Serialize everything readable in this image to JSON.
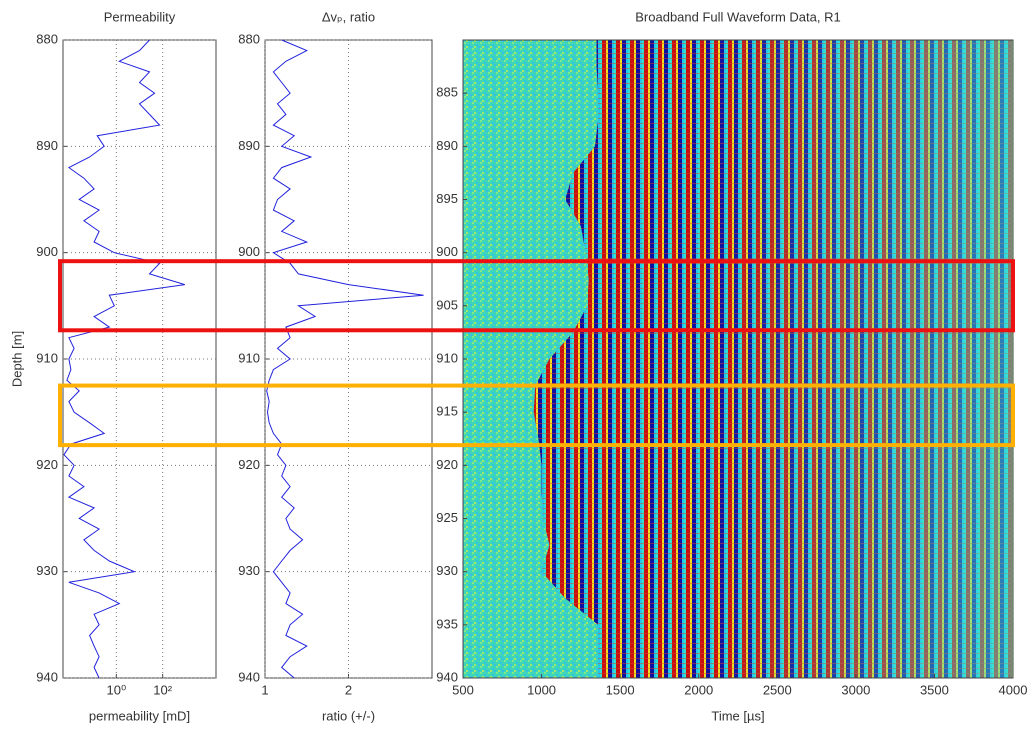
{
  "chart_data": [
    {
      "type": "line",
      "title": "Permeability",
      "xlabel": "permeability [mD]",
      "ylabel": "Depth [m]",
      "log_x": true,
      "grid": true,
      "color": "#2222dd",
      "xlim": [
        0.005,
        20000
      ],
      "xticks": [
        {
          "value": 1,
          "label": "10⁰"
        },
        {
          "value": 100,
          "label": "10²"
        }
      ],
      "ylim": [
        880,
        940
      ],
      "yticks": [
        880,
        890,
        900,
        910,
        920,
        930,
        940
      ],
      "depths": [
        880,
        881,
        882,
        883,
        884,
        885,
        886,
        887,
        888,
        889,
        890,
        891,
        892,
        893,
        894,
        895,
        896,
        897,
        898,
        899,
        900,
        901,
        902,
        903,
        904,
        905,
        906,
        907,
        908,
        909,
        910,
        911,
        912,
        913,
        914,
        915,
        916,
        917,
        918,
        919,
        920,
        921,
        922,
        923,
        924,
        925,
        926,
        927,
        928,
        929,
        930,
        931,
        932,
        933,
        934,
        935,
        936,
        937,
        938,
        939,
        940
      ],
      "values": [
        27,
        10,
        1.35,
        27,
        10,
        45,
        10,
        27,
        74,
        0.15,
        0.3,
        0.07,
        0.009,
        0.04,
        0.11,
        0.025,
        0.18,
        0.04,
        0.18,
        0.11,
        0.82,
        74,
        27,
        900,
        0.5,
        0.82,
        0.11,
        0.5,
        0.009,
        0.015,
        0.009,
        0.011,
        0.0074,
        0.025,
        0.009,
        0.015,
        0.07,
        0.3,
        0.011,
        0.0055,
        0.015,
        0.009,
        0.04,
        0.009,
        0.11,
        0.025,
        0.18,
        0.04,
        0.11,
        0.5,
        6,
        0.009,
        0.18,
        1.35,
        0.11,
        0.18,
        0.07,
        0.11,
        0.18,
        0.11,
        0.18
      ]
    },
    {
      "type": "line",
      "title": "Δvₚ, ratio",
      "xlabel": "ratio (+/-)",
      "log_x": false,
      "grid": true,
      "color": "#2222dd",
      "xlim": [
        1,
        3
      ],
      "xticks": [
        1,
        2
      ],
      "ylim": [
        880,
        940
      ],
      "yticks": [
        880,
        890,
        900,
        910,
        920,
        930,
        940
      ],
      "depths": [
        880,
        881,
        882,
        883,
        884,
        885,
        886,
        887,
        888,
        889,
        890,
        891,
        892,
        893,
        894,
        895,
        896,
        897,
        898,
        899,
        900,
        901,
        902,
        903,
        904,
        905,
        906,
        907,
        908,
        909,
        910,
        911,
        912,
        913,
        914,
        915,
        916,
        917,
        918,
        919,
        920,
        921,
        922,
        923,
        924,
        925,
        926,
        927,
        928,
        929,
        930,
        931,
        932,
        933,
        934,
        935,
        936,
        937,
        938,
        939,
        940
      ],
      "values": [
        1.2,
        1.5,
        1.25,
        1.1,
        1.2,
        1.3,
        1.15,
        1.25,
        1.1,
        1.35,
        1.2,
        1.55,
        1.2,
        1.1,
        1.3,
        1.15,
        1.1,
        1.35,
        1.2,
        1.5,
        1.1,
        1.3,
        1.4,
        2.0,
        2.9,
        1.4,
        1.6,
        1.25,
        1.3,
        1.15,
        1.3,
        1.1,
        1.05,
        1.02,
        1.05,
        1.03,
        1.05,
        1.1,
        1.2,
        1.15,
        1.25,
        1.2,
        1.3,
        1.2,
        1.35,
        1.25,
        1.3,
        1.45,
        1.3,
        1.2,
        1.1,
        1.2,
        1.3,
        1.25,
        1.45,
        1.3,
        1.25,
        1.5,
        1.3,
        1.2,
        1.35
      ]
    },
    {
      "type": "waveform",
      "title": "Broadband Full Waveform Data, R1",
      "xlabel": "Time [µs]",
      "log_x": false,
      "grid": false,
      "xlim": [
        500,
        4000
      ],
      "xticks": [
        500,
        1000,
        1500,
        2000,
        2500,
        3000,
        3500,
        4000
      ],
      "ylim": [
        880,
        940
      ],
      "yticks": [
        885,
        890,
        895,
        900,
        905,
        910,
        915,
        920,
        925,
        930,
        935,
        940
      ],
      "depths": [
        880,
        882.5,
        885,
        887.5,
        890,
        892.5,
        895,
        897.5,
        900,
        902.5,
        905,
        907.5,
        910,
        912.5,
        915,
        917.5,
        920,
        922.5,
        925,
        927.5,
        930,
        932.5,
        935,
        937.5,
        940
      ],
      "values": [
        1350,
        1350,
        1360,
        1360,
        1340,
        1200,
        1150,
        1250,
        1280,
        1300,
        1290,
        1200,
        1050,
        960,
        950,
        980,
        1000,
        1000,
        1010,
        1050,
        1000,
        1150,
        1360,
        1360,
        1360
      ]
    }
  ],
  "highlights": [
    {
      "depths": [
        900.8,
        907.3
      ],
      "color": "#ee1111"
    },
    {
      "depths": [
        912.5,
        918.1
      ],
      "color": "#ffb000"
    }
  ]
}
